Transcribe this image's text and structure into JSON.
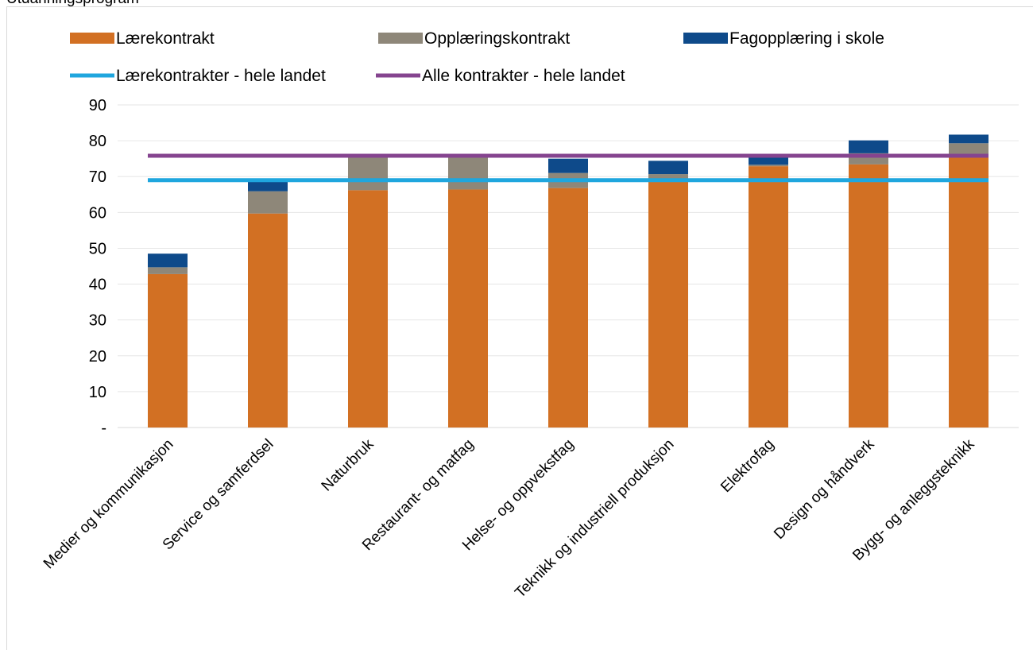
{
  "cut_title": "Utdanningsprogram",
  "chart_data": {
    "type": "bar",
    "stacked": true,
    "categories": [
      "Medier og kommunikasjon",
      "Service og samferdsel",
      "Naturbruk",
      "Restaurant- og matfag",
      "Helse- og oppvekstfag",
      "Teknikk og industriell produksjon",
      "Elektrofag",
      "Design og håndverk",
      "Bygg- og anleggsteknikk"
    ],
    "series": [
      {
        "name": "Lærekontrakt",
        "color": "#d27023",
        "values": [
          42.8,
          59.7,
          66.2,
          66.4,
          66.8,
          69.2,
          72.9,
          73.4,
          75.6
        ]
      },
      {
        "name": "Opplæringskontrakt",
        "color": "#8e8779",
        "values": [
          1.9,
          6.2,
          9.4,
          9.4,
          4.2,
          1.5,
          0.4,
          3.1,
          3.7
        ]
      },
      {
        "name": "Fagopplæring i skole",
        "color": "#0e4a8a",
        "values": [
          3.8,
          3.1,
          0.2,
          0.3,
          4.0,
          3.7,
          2.6,
          3.6,
          2.4
        ]
      }
    ],
    "lines": [
      {
        "name": "Lærekontrakter - hele landet",
        "color": "#1fa6de",
        "value": 69.0
      },
      {
        "name": "Alle kontrakter - hele landet",
        "color": "#85448f",
        "value": 75.8
      }
    ],
    "ylim": [
      0,
      90
    ],
    "yticks": [
      0,
      10,
      20,
      30,
      40,
      50,
      60,
      70,
      80,
      90
    ],
    "ytick_labels": [
      "-",
      "10",
      "20",
      "30",
      "40",
      "50",
      "60",
      "70",
      "80",
      "90"
    ],
    "xlabel": "",
    "ylabel": "",
    "grid": true,
    "legend_position": "top"
  }
}
